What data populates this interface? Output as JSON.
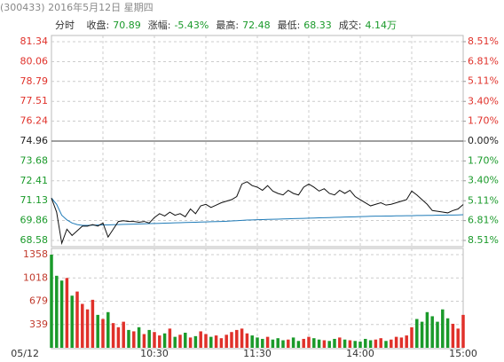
{
  "header": {
    "code": "(300433)",
    "date": "2016年5月12日",
    "weekday": "星期四"
  },
  "tab": "分时",
  "info": [
    {
      "label": "收盘:",
      "value": "70.89"
    },
    {
      "label": "涨幅:",
      "value": "-5.43%"
    },
    {
      "label": "最高:",
      "value": "72.48"
    },
    {
      "label": "最低:",
      "value": "68.33"
    },
    {
      "label": "成交:",
      "value": "4.14万"
    }
  ],
  "chart_data": {
    "type": "line",
    "x": [
      0,
      3,
      6,
      9,
      12,
      15,
      18,
      21,
      24,
      27,
      30,
      33,
      36,
      39,
      42,
      45,
      48,
      51,
      54,
      57,
      60,
      63,
      66,
      69,
      72,
      75,
      78,
      81,
      84,
      87,
      90,
      93,
      96,
      99,
      102,
      105,
      108,
      111,
      114,
      117,
      120,
      123,
      126,
      129,
      132,
      135,
      138,
      141,
      144,
      147,
      150,
      153,
      156,
      159,
      162,
      165,
      168,
      171,
      174,
      177,
      180,
      183,
      186,
      189,
      192,
      195,
      198,
      201,
      204,
      207,
      210,
      213,
      216,
      219,
      222,
      225,
      228,
      231,
      234,
      237,
      240
    ],
    "xlim": [
      0,
      240
    ],
    "xticks": [
      {
        "value": 0,
        "label": "05/12"
      },
      {
        "value": 60,
        "label": "10:30"
      },
      {
        "value": 120,
        "label": "11:30"
      },
      {
        "value": 180,
        "label": "14:00"
      },
      {
        "value": 240,
        "label": "15:00"
      }
    ],
    "ylim": [
      68.58,
      81.34
    ],
    "yticks": [
      81.34,
      80.06,
      78.79,
      77.51,
      76.24,
      74.96,
      73.68,
      72.41,
      71.13,
      69.86,
      68.58
    ],
    "y2lim": [
      -8.51,
      8.51
    ],
    "y2ticks": [
      {
        "value": 8.51,
        "label": "8.51%"
      },
      {
        "value": 6.81,
        "label": "6.81%"
      },
      {
        "value": 5.11,
        "label": "5.11%"
      },
      {
        "value": 3.4,
        "label": "3.40%"
      },
      {
        "value": 1.7,
        "label": "1.70%"
      },
      {
        "value": 0,
        "label": "0.00%"
      },
      {
        "value": -1.7,
        "label": "1.70%"
      },
      {
        "value": -3.4,
        "label": "3.40%"
      },
      {
        "value": -5.11,
        "label": "5.11%"
      },
      {
        "value": -6.81,
        "label": "6.81%"
      },
      {
        "value": -8.51,
        "label": "8.51%"
      }
    ],
    "grid": true,
    "up_color": "#e0312a",
    "down_color": "#1a9a2a",
    "series": [
      {
        "color": "#111111",
        "values": [
          71.3,
          70.4,
          68.4,
          69.3,
          68.9,
          69.2,
          69.5,
          69.5,
          69.6,
          69.5,
          69.7,
          68.8,
          69.3,
          69.8,
          69.85,
          69.8,
          69.8,
          69.75,
          69.8,
          69.7,
          70.05,
          70.3,
          70.15,
          70.4,
          70.2,
          70.3,
          70.1,
          70.6,
          70.3,
          70.8,
          70.9,
          70.7,
          70.85,
          71.0,
          71.1,
          71.2,
          71.4,
          72.2,
          72.35,
          72.1,
          72.0,
          71.8,
          72.1,
          71.75,
          71.6,
          71.5,
          71.8,
          71.6,
          71.5,
          72.0,
          72.2,
          72.0,
          71.75,
          71.9,
          71.6,
          71.5,
          71.8,
          71.6,
          71.8,
          71.4,
          71.2,
          71.0,
          70.8,
          70.9,
          71.0,
          70.85,
          70.9,
          71.0,
          71.1,
          71.2,
          71.75,
          71.5,
          71.2,
          70.9,
          70.5,
          70.45,
          70.4,
          70.35,
          70.5,
          70.6,
          70.89
        ]
      },
      {
        "color": "#1f7bb8",
        "values": [
          71.3,
          70.9,
          70.2,
          69.9,
          69.7,
          69.6,
          69.55,
          69.55,
          69.56,
          69.57,
          69.58,
          69.58,
          69.59,
          69.6,
          69.61,
          69.62,
          69.63,
          69.64,
          69.65,
          69.66,
          69.67,
          69.68,
          69.69,
          69.7,
          69.71,
          69.72,
          69.73,
          69.74,
          69.75,
          69.76,
          69.77,
          69.78,
          69.79,
          69.8,
          69.81,
          69.83,
          69.85,
          69.87,
          69.89,
          69.9,
          69.91,
          69.92,
          69.93,
          69.94,
          69.95,
          69.96,
          69.97,
          69.98,
          69.99,
          70.0,
          70.01,
          70.02,
          70.03,
          70.04,
          70.05,
          70.06,
          70.07,
          70.08,
          70.09,
          70.1,
          70.11,
          70.12,
          70.13,
          70.14,
          70.14,
          70.15,
          70.15,
          70.16,
          70.16,
          70.17,
          70.17,
          70.18,
          70.18,
          70.19,
          70.19,
          70.2,
          70.2,
          70.21,
          70.21,
          70.22,
          70.23
        ]
      }
    ],
    "volume": {
      "values": [
        1358,
        1050,
        980,
        1018,
        760,
        820,
        640,
        560,
        700,
        480,
        420,
        520,
        360,
        300,
        380,
        260,
        240,
        300,
        200,
        260,
        230,
        180,
        210,
        280,
        160,
        190,
        220,
        150,
        170,
        240,
        200,
        160,
        180,
        140,
        190,
        230,
        260,
        280,
        210,
        180,
        150,
        130,
        160,
        120,
        140,
        110,
        120,
        150,
        100,
        130,
        160,
        140,
        120,
        110,
        100,
        130,
        150,
        120,
        110,
        100,
        90,
        130,
        110,
        120,
        140,
        100,
        120,
        160,
        150,
        180,
        300,
        420,
        380,
        520,
        460,
        380,
        560,
        430,
        350,
        280,
        480
      ],
      "ylim": [
        0,
        1358
      ],
      "yticks": [
        1358,
        1018,
        679,
        339
      ]
    }
  }
}
